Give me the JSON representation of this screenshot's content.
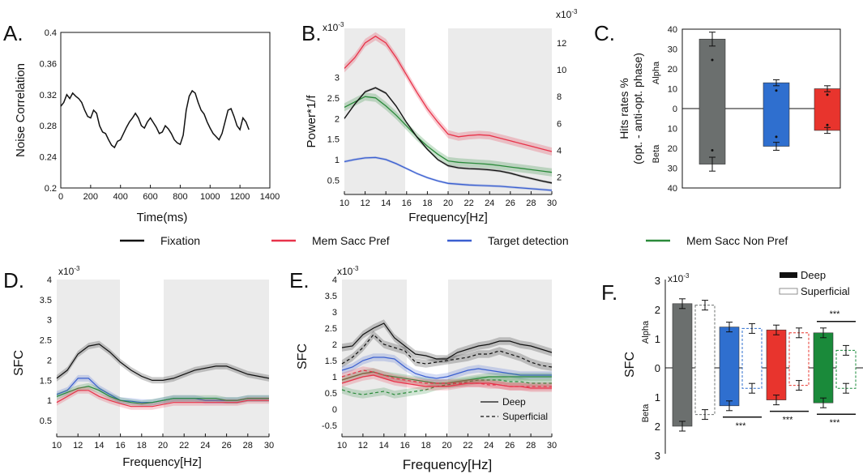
{
  "colors": {
    "fixation": "#111111",
    "mem_sacc_pref": "#e8334a",
    "target_detection": "#3a5fd0",
    "mem_sacc_non_pref": "#2a8a3a",
    "shade": "#ebebeb",
    "grey_bar": "#6b6f6e",
    "blue_bar": "#2f6fcf",
    "red_bar": "#e8342d",
    "green_bar": "#1a8a3a"
  },
  "legend": {
    "items": [
      {
        "label": "Fixation",
        "color": "#111111"
      },
      {
        "label": "Mem Sacc Pref",
        "color": "#e8334a"
      },
      {
        "label": "Target detection",
        "color": "#3a5fd0"
      },
      {
        "label": "Mem Sacc Non Pref",
        "color": "#2a8a3a"
      }
    ]
  },
  "chart_data": [
    {
      "panel": "A.",
      "type": "line",
      "xlabel": "Time(ms)",
      "ylabel": "Noise Correlation",
      "xlim": [
        0,
        1400
      ],
      "ylim": [
        0.2,
        0.4
      ],
      "xticks": [
        "0",
        "200",
        "400",
        "600",
        "800",
        "1000",
        "1200",
        "1400"
      ],
      "yticks": [
        "0.2",
        "0.24",
        "0.28",
        "0.32",
        "0.36",
        "0.4"
      ],
      "series": [
        {
          "x": [
            0,
            20,
            40,
            60,
            80,
            100,
            120,
            140,
            160,
            180,
            200,
            220,
            240,
            260,
            280,
            300,
            320,
            340,
            360,
            380,
            400,
            420,
            440,
            460,
            480,
            500,
            520,
            540,
            560,
            580,
            600,
            620,
            640,
            660,
            680,
            700,
            720,
            740,
            760,
            780,
            800,
            820,
            840,
            860,
            880,
            900,
            920,
            940,
            960,
            980,
            1000,
            1020,
            1040,
            1060,
            1080,
            1100,
            1120,
            1140,
            1160,
            1180,
            1200,
            1220,
            1240,
            1260
          ],
          "y": [
            0.305,
            0.31,
            0.32,
            0.315,
            0.322,
            0.318,
            0.315,
            0.31,
            0.3,
            0.292,
            0.29,
            0.3,
            0.296,
            0.28,
            0.272,
            0.27,
            0.262,
            0.255,
            0.252,
            0.26,
            0.262,
            0.27,
            0.278,
            0.285,
            0.29,
            0.296,
            0.29,
            0.28,
            0.277,
            0.285,
            0.29,
            0.284,
            0.278,
            0.27,
            0.272,
            0.28,
            0.276,
            0.27,
            0.262,
            0.258,
            0.256,
            0.268,
            0.3,
            0.318,
            0.325,
            0.322,
            0.31,
            0.3,
            0.295,
            0.285,
            0.277,
            0.27,
            0.266,
            0.262,
            0.27,
            0.285,
            0.3,
            0.302,
            0.292,
            0.28,
            0.275,
            0.29,
            0.285,
            0.275
          ]
        }
      ]
    },
    {
      "panel": "B.",
      "type": "line",
      "xlabel": "Frequency[Hz]",
      "ylabel": "Power*1/f",
      "left_multiplier": "x10",
      "left_exponent": "-3",
      "right_multiplier": "x10",
      "right_exponent": "-3",
      "xlim": [
        10,
        30
      ],
      "xticks": [
        "10",
        "12",
        "14",
        "16",
        "18",
        "20",
        "22",
        "24",
        "26",
        "28",
        "30"
      ],
      "yticks_left": [
        "0.5",
        "1",
        "1.5",
        "2",
        "2.5",
        "3"
      ],
      "yticks_right": [
        "2",
        "4",
        "6",
        "8",
        "10",
        "12"
      ],
      "shaded": [
        [
          10,
          16
        ],
        [
          20,
          30
        ]
      ],
      "x": [
        10,
        11,
        12,
        13,
        14,
        15,
        16,
        17,
        18,
        19,
        20,
        21,
        22,
        23,
        24,
        25,
        26,
        27,
        28,
        29,
        30
      ],
      "series": [
        {
          "name": "Mem Sacc Pref",
          "color": "#e8334a",
          "scale": "right",
          "y": [
            10.1,
            10.9,
            12.0,
            12.5,
            12.0,
            10.9,
            9.6,
            8.3,
            7.1,
            6.1,
            5.2,
            5.0,
            5.1,
            5.15,
            5.1,
            4.9,
            4.7,
            4.5,
            4.3,
            4.1,
            3.9
          ]
        },
        {
          "name": "Mem Sacc Non Pref",
          "color": "#2a8a3a",
          "scale": "right",
          "y": [
            7.2,
            7.6,
            8.0,
            7.9,
            7.3,
            6.6,
            5.8,
            5.0,
            4.3,
            3.7,
            3.2,
            3.1,
            3.05,
            3.0,
            2.95,
            2.85,
            2.75,
            2.65,
            2.55,
            2.45,
            2.35
          ]
        },
        {
          "name": "Fixation",
          "color": "#111111",
          "scale": "left",
          "y": [
            2.0,
            2.35,
            2.65,
            2.75,
            2.62,
            2.3,
            1.9,
            1.55,
            1.25,
            1.0,
            0.85,
            0.8,
            0.78,
            0.77,
            0.75,
            0.72,
            0.67,
            0.6,
            0.54,
            0.48,
            0.43
          ]
        },
        {
          "name": "Target detection",
          "color": "#3a5fd0",
          "scale": "left",
          "y": [
            0.95,
            1.0,
            1.04,
            1.05,
            1.0,
            0.9,
            0.78,
            0.66,
            0.56,
            0.48,
            0.42,
            0.4,
            0.38,
            0.37,
            0.36,
            0.35,
            0.33,
            0.31,
            0.29,
            0.27,
            0.25
          ]
        }
      ]
    },
    {
      "panel": "C.",
      "type": "bar",
      "ylabel_line1": "Hits rates %",
      "ylabel_line2": "(opt. - anti-opt. phase)",
      "alpha_label": "Alpha",
      "beta_label": "Beta",
      "yticks_top": [
        "0",
        "10",
        "20",
        "30",
        "40"
      ],
      "yticks_bottom": [
        "10",
        "20",
        "30",
        "40"
      ],
      "categories": [
        "Grey",
        "Blue",
        "Red"
      ],
      "alpha_values": [
        35,
        13,
        10
      ],
      "beta_values": [
        28,
        19,
        11
      ],
      "alpha_err": [
        3.5,
        1.5,
        1.5
      ],
      "beta_err": [
        3.5,
        2,
        1.5
      ],
      "colors": [
        "#6b6f6e",
        "#2f6fcf",
        "#e8342d"
      ]
    },
    {
      "panel": "D.",
      "type": "line",
      "xlabel": "Frequency[Hz]",
      "ylabel": "SFC",
      "multiplier": "x10",
      "exponent": "-3",
      "xlim": [
        10,
        30
      ],
      "ylim": [
        0,
        4
      ],
      "xticks": [
        "10",
        "12",
        "14",
        "16",
        "18",
        "20",
        "22",
        "24",
        "26",
        "28",
        "30"
      ],
      "yticks": [
        "0.5",
        "1",
        "1.5",
        "2",
        "2.5",
        "3",
        "3.5",
        "4"
      ],
      "shaded": [
        [
          10,
          16
        ],
        [
          20,
          30
        ]
      ],
      "x": [
        10,
        11,
        12,
        13,
        14,
        15,
        16,
        17,
        18,
        19,
        20,
        21,
        22,
        23,
        24,
        25,
        26,
        27,
        28,
        29,
        30
      ],
      "series": [
        {
          "name": "Fixation",
          "color": "#111111",
          "y": [
            1.55,
            1.75,
            2.15,
            2.35,
            2.4,
            2.2,
            1.95,
            1.75,
            1.6,
            1.5,
            1.5,
            1.55,
            1.65,
            1.75,
            1.8,
            1.85,
            1.85,
            1.75,
            1.65,
            1.6,
            1.55
          ]
        },
        {
          "name": "Target detection",
          "color": "#3a5fd0",
          "y": [
            1.15,
            1.25,
            1.55,
            1.55,
            1.3,
            1.15,
            1.0,
            0.98,
            0.95,
            0.95,
            1.0,
            1.05,
            1.05,
            1.05,
            1.0,
            1.0,
            1.0,
            1.0,
            1.05,
            1.05,
            1.05
          ]
        },
        {
          "name": "Mem Sacc Non Pref",
          "color": "#2a8a3a",
          "y": [
            1.1,
            1.2,
            1.3,
            1.35,
            1.25,
            1.1,
            1.0,
            0.95,
            0.92,
            0.95,
            1.0,
            1.05,
            1.05,
            1.05,
            1.05,
            1.05,
            1.0,
            1.0,
            1.05,
            1.05,
            1.05
          ]
        },
        {
          "name": "Mem Sacc Pref",
          "color": "#e8334a",
          "y": [
            0.95,
            1.1,
            1.25,
            1.25,
            1.1,
            1.0,
            0.92,
            0.85,
            0.85,
            0.85,
            0.9,
            0.95,
            0.95,
            0.95,
            0.95,
            0.95,
            0.95,
            0.95,
            1.0,
            1.0,
            1.0
          ]
        }
      ]
    },
    {
      "panel": "E.",
      "type": "line",
      "xlabel": "Frequency[Hz]",
      "ylabel": "SFC",
      "multiplier": "x10",
      "exponent": "-3",
      "xlim": [
        10,
        30
      ],
      "ylim": [
        -1,
        4
      ],
      "xticks": [
        "10",
        "12",
        "14",
        "16",
        "18",
        "20",
        "22",
        "24",
        "26",
        "28",
        "30"
      ],
      "yticks": [
        "-0.5",
        "0",
        "0.5",
        "1",
        "1.5",
        "2",
        "2.5",
        "3",
        "3.5",
        "4"
      ],
      "shaded": [
        [
          10,
          16
        ],
        [
          20,
          30
        ]
      ],
      "style_legend": [
        {
          "label": "Deep",
          "dash": "solid"
        },
        {
          "label": "Superficial",
          "dash": "dashed"
        }
      ],
      "x": [
        10,
        11,
        12,
        13,
        14,
        15,
        16,
        17,
        18,
        19,
        20,
        21,
        22,
        23,
        24,
        25,
        26,
        27,
        28,
        29,
        30
      ],
      "series": [
        {
          "name": "Fixation",
          "color": "#111111",
          "dash": "solid",
          "y": [
            1.9,
            1.95,
            2.3,
            2.5,
            2.65,
            2.2,
            1.95,
            1.7,
            1.65,
            1.55,
            1.55,
            1.75,
            1.85,
            1.95,
            2.0,
            2.1,
            2.1,
            2.0,
            1.95,
            1.85,
            1.75
          ]
        },
        {
          "name": "Fixation",
          "color": "#111111",
          "dash": "dashed",
          "y": [
            1.4,
            1.6,
            1.9,
            2.3,
            2.0,
            1.9,
            1.8,
            1.45,
            1.4,
            1.45,
            1.5,
            1.55,
            1.6,
            1.7,
            1.7,
            1.8,
            1.7,
            1.6,
            1.45,
            1.35,
            1.3
          ]
        },
        {
          "name": "Target detection",
          "color": "#3a5fd0",
          "dash": "solid",
          "y": [
            1.2,
            1.3,
            1.5,
            1.6,
            1.6,
            1.55,
            1.3,
            1.1,
            1.0,
            0.95,
            1.0,
            1.1,
            1.2,
            1.25,
            1.2,
            1.15,
            1.1,
            1.05,
            1.05,
            1.05,
            1.05
          ]
        },
        {
          "name": "Mem Sacc Non Pref",
          "color": "#2a8a3a",
          "dash": "solid",
          "y": [
            0.9,
            1.0,
            1.1,
            1.15,
            1.05,
            1.0,
            0.95,
            0.9,
            0.85,
            0.8,
            0.8,
            0.85,
            0.9,
            0.95,
            1.0,
            1.0,
            1.0,
            1.0,
            1.0,
            1.0,
            1.0
          ]
        },
        {
          "name": "Mem Sacc Non Pref",
          "color": "#2a8a3a",
          "dash": "dashed",
          "y": [
            0.6,
            0.5,
            0.45,
            0.5,
            0.55,
            0.45,
            0.5,
            0.55,
            0.6,
            0.7,
            0.75,
            0.8,
            0.85,
            0.9,
            0.9,
            0.9,
            0.85,
            0.85,
            0.8,
            0.8,
            0.8
          ]
        },
        {
          "name": "Mem Sacc Pref",
          "color": "#e8334a",
          "dash": "solid",
          "y": [
            0.8,
            0.9,
            1.0,
            1.05,
            0.95,
            0.85,
            0.8,
            0.75,
            0.7,
            0.7,
            0.7,
            0.75,
            0.8,
            0.8,
            0.8,
            0.75,
            0.7,
            0.7,
            0.65,
            0.65,
            0.65
          ]
        },
        {
          "name": "Mem Sacc Pref",
          "color": "#e8334a",
          "dash": "dashed",
          "y": [
            1.0,
            1.1,
            1.2,
            1.15,
            1.05,
            0.95,
            0.9,
            0.85,
            0.8,
            0.8,
            0.8,
            0.8,
            0.8,
            0.8,
            0.75,
            0.75,
            0.7,
            0.7,
            0.7,
            0.7,
            0.7
          ]
        }
      ]
    },
    {
      "panel": "F.",
      "type": "bar",
      "ylabel": "SFC",
      "multiplier": "x10",
      "exponent": "-3",
      "alpha_label": "Alpha",
      "beta_label": "Beta",
      "yticks_top": [
        "0",
        "1",
        "2",
        "3"
      ],
      "yticks_bottom": [
        "1",
        "2",
        "3"
      ],
      "legend": [
        {
          "label": "Deep",
          "style": "solid"
        },
        {
          "label": "Superficial",
          "style": "dashed"
        }
      ],
      "groups": [
        {
          "color": "#6b6f6e",
          "deep_alpha": 2.2,
          "sup_alpha": 2.15,
          "deep_beta": 2.0,
          "sup_beta": 1.6
        },
        {
          "color": "#2f6fcf",
          "deep_alpha": 1.4,
          "sup_alpha": 1.35,
          "deep_beta": 1.3,
          "sup_beta": 0.7
        },
        {
          "color": "#e8342d",
          "deep_alpha": 1.3,
          "sup_alpha": 1.2,
          "deep_beta": 1.1,
          "sup_beta": 0.6
        },
        {
          "color": "#1a8a3a",
          "deep_alpha": 1.2,
          "sup_alpha": 0.6,
          "deep_beta": 1.2,
          "sup_beta": 0.7
        }
      ],
      "significance": "***"
    }
  ]
}
